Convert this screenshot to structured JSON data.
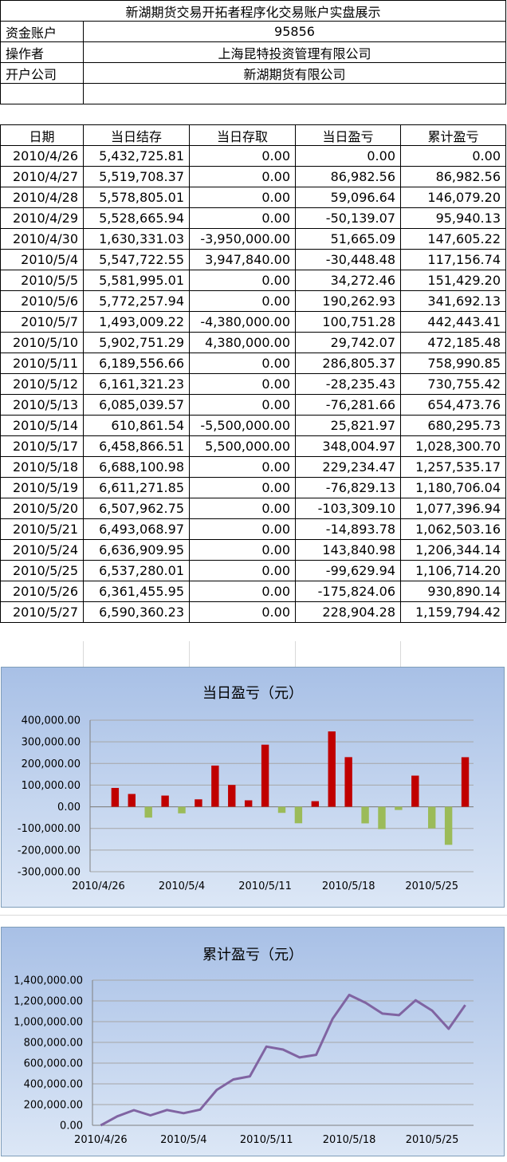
{
  "header": {
    "title": "新湖期货交易开拓者程序化交易账户实盘展示",
    "rows": [
      {
        "label": "资金账户",
        "value": "95856"
      },
      {
        "label": "操作者",
        "value": "上海昆特投资管理有限公司"
      },
      {
        "label": "开户公司",
        "value": "新湖期货有限公司"
      },
      {
        "label": "",
        "value": ""
      }
    ]
  },
  "table": {
    "columns": [
      "日期",
      "当日结存",
      "当日存取",
      "当日盈亏",
      "累计盈亏"
    ],
    "rows": [
      [
        "2010/4/26",
        "5,432,725.81",
        "0.00",
        "0.00",
        "0.00"
      ],
      [
        "2010/4/27",
        "5,519,708.37",
        "0.00",
        "86,982.56",
        "86,982.56"
      ],
      [
        "2010/4/28",
        "5,578,805.01",
        "0.00",
        "59,096.64",
        "146,079.20"
      ],
      [
        "2010/4/29",
        "5,528,665.94",
        "0.00",
        "-50,139.07",
        "95,940.13"
      ],
      [
        "2010/4/30",
        "1,630,331.03",
        "-3,950,000.00",
        "51,665.09",
        "147,605.22"
      ],
      [
        "2010/5/4",
        "5,547,722.55",
        "3,947,840.00",
        "-30,448.48",
        "117,156.74"
      ],
      [
        "2010/5/5",
        "5,581,995.01",
        "0.00",
        "34,272.46",
        "151,429.20"
      ],
      [
        "2010/5/6",
        "5,772,257.94",
        "0.00",
        "190,262.93",
        "341,692.13"
      ],
      [
        "2010/5/7",
        "1,493,009.22",
        "-4,380,000.00",
        "100,751.28",
        "442,443.41"
      ],
      [
        "2010/5/10",
        "5,902,751.29",
        "4,380,000.00",
        "29,742.07",
        "472,185.48"
      ],
      [
        "2010/5/11",
        "6,189,556.66",
        "0.00",
        "286,805.37",
        "758,990.85"
      ],
      [
        "2010/5/12",
        "6,161,321.23",
        "0.00",
        "-28,235.43",
        "730,755.42"
      ],
      [
        "2010/5/13",
        "6,085,039.57",
        "0.00",
        "-76,281.66",
        "654,473.76"
      ],
      [
        "2010/5/14",
        "610,861.54",
        "-5,500,000.00",
        "25,821.97",
        "680,295.73"
      ],
      [
        "2010/5/17",
        "6,458,866.51",
        "5,500,000.00",
        "348,004.97",
        "1,028,300.70"
      ],
      [
        "2010/5/18",
        "6,688,100.98",
        "0.00",
        "229,234.47",
        "1,257,535.17"
      ],
      [
        "2010/5/19",
        "6,611,271.85",
        "0.00",
        "-76,829.13",
        "1,180,706.04"
      ],
      [
        "2010/5/20",
        "6,507,962.75",
        "0.00",
        "-103,309.10",
        "1,077,396.94"
      ],
      [
        "2010/5/21",
        "6,493,068.97",
        "0.00",
        "-14,893.78",
        "1,062,503.16"
      ],
      [
        "2010/5/24",
        "6,636,909.95",
        "0.00",
        "143,840.98",
        "1,206,344.14"
      ],
      [
        "2010/5/25",
        "6,537,280.01",
        "0.00",
        "-99,629.94",
        "1,106,714.20"
      ],
      [
        "2010/5/26",
        "6,361,455.95",
        "0.00",
        "-175,824.06",
        "930,890.14"
      ],
      [
        "2010/5/27",
        "6,590,360.23",
        "0.00",
        "228,904.28",
        "1,159,794.42"
      ]
    ]
  },
  "chart_data": [
    {
      "type": "bar",
      "title": "当日盈亏（元）",
      "x": [
        "2010/4/26",
        "2010/4/27",
        "2010/4/28",
        "2010/4/29",
        "2010/4/30",
        "2010/5/4",
        "2010/5/5",
        "2010/5/6",
        "2010/5/7",
        "2010/5/10",
        "2010/5/11",
        "2010/5/12",
        "2010/5/13",
        "2010/5/14",
        "2010/5/17",
        "2010/5/18",
        "2010/5/19",
        "2010/5/20",
        "2010/5/21",
        "2010/5/24",
        "2010/5/25",
        "2010/5/26",
        "2010/5/27"
      ],
      "values": [
        0,
        86982.56,
        59096.64,
        -50139.07,
        51665.09,
        -30448.48,
        34272.46,
        190262.93,
        100751.28,
        29742.07,
        286805.37,
        -28235.43,
        -76281.66,
        25821.97,
        348004.97,
        229234.47,
        -76829.13,
        -103309.1,
        -14893.78,
        143840.98,
        -99629.94,
        -175824.06,
        228904.28
      ],
      "ylim": [
        -300000,
        400000
      ],
      "ytick_labels": [
        "400,000.00",
        "300,000.00",
        "200,000.00",
        "100,000.00",
        "0.00",
        "-100,000.00",
        "-200,000.00",
        "-300,000.00"
      ],
      "xtick_labels": [
        "2010/4/26",
        "2010/5/4",
        "2010/5/11",
        "2010/5/18",
        "2010/5/25"
      ],
      "colors": {
        "positive": "#c00000",
        "negative": "#9bbb59",
        "grid": "#a6a6a6"
      },
      "grid": true
    },
    {
      "type": "line",
      "title": "累计盈亏（元）",
      "x": [
        "2010/4/26",
        "2010/4/27",
        "2010/4/28",
        "2010/4/29",
        "2010/4/30",
        "2010/5/4",
        "2010/5/5",
        "2010/5/6",
        "2010/5/7",
        "2010/5/10",
        "2010/5/11",
        "2010/5/12",
        "2010/5/13",
        "2010/5/14",
        "2010/5/17",
        "2010/5/18",
        "2010/5/19",
        "2010/5/20",
        "2010/5/21",
        "2010/5/24",
        "2010/5/25",
        "2010/5/26",
        "2010/5/27"
      ],
      "values": [
        0,
        86982.56,
        146079.2,
        95940.13,
        147605.22,
        117156.74,
        151429.2,
        341692.13,
        442443.41,
        472185.48,
        758990.85,
        730755.42,
        654473.76,
        680295.73,
        1028300.7,
        1257535.17,
        1180706.04,
        1077396.94,
        1062503.16,
        1206344.14,
        1106714.2,
        930890.14,
        1159794.42
      ],
      "ylim": [
        0,
        1400000
      ],
      "ytick_labels": [
        "1,400,000.00",
        "1,200,000.00",
        "1,000,000.00",
        "800,000.00",
        "600,000.00",
        "400,000.00",
        "200,000.00",
        "0.00"
      ],
      "xtick_labels": [
        "2010/4/26",
        "2010/5/4",
        "2010/5/11",
        "2010/5/18",
        "2010/5/25"
      ],
      "colors": {
        "line": "#8064a2",
        "grid": "#a6a6a6"
      },
      "grid": true
    }
  ]
}
